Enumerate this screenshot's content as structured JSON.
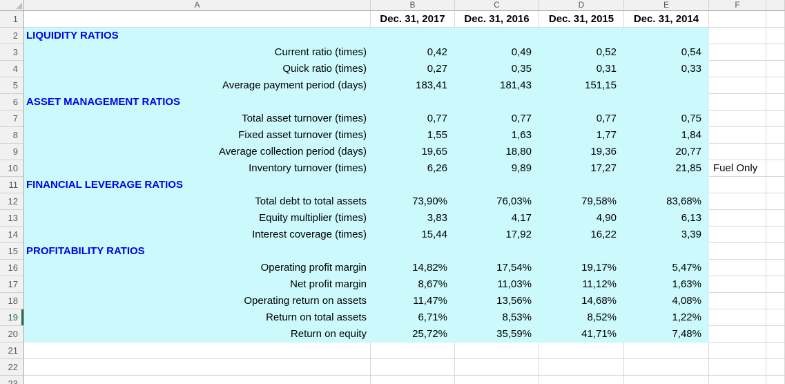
{
  "sheet": {
    "column_letters": [
      "A",
      "B",
      "C",
      "D",
      "E",
      "F",
      ""
    ],
    "row_numbers": [
      "1",
      "2",
      "3",
      "4",
      "5",
      "6",
      "7",
      "8",
      "9",
      "10",
      "11",
      "12",
      "13",
      "14",
      "15",
      "16",
      "17",
      "18",
      "19",
      "20",
      "21",
      "22",
      "23"
    ],
    "active_row_number": "19"
  },
  "header_row": {
    "dates": [
      "Dec. 31, 2017",
      "Dec. 31, 2016",
      "Dec. 31, 2015",
      "Dec. 31, 2014"
    ]
  },
  "rows": [
    {
      "row": "2",
      "label": "LIQUIDITY RATIOS",
      "section": true,
      "values": [
        "",
        "",
        "",
        ""
      ],
      "note": ""
    },
    {
      "row": "3",
      "label": "Current ratio (times)",
      "section": false,
      "values": [
        "0,42",
        "0,49",
        "0,52",
        "0,54"
      ],
      "note": ""
    },
    {
      "row": "4",
      "label": "Quick ratio (times)",
      "section": false,
      "values": [
        "0,27",
        "0,35",
        "0,31",
        "0,33"
      ],
      "note": ""
    },
    {
      "row": "5",
      "label": "Average payment period (days)",
      "section": false,
      "values": [
        "183,41",
        "181,43",
        "151,15",
        ""
      ],
      "note": ""
    },
    {
      "row": "6",
      "label": "ASSET MANAGEMENT RATIOS",
      "section": true,
      "values": [
        "",
        "",
        "",
        ""
      ],
      "note": ""
    },
    {
      "row": "7",
      "label": "Total asset turnover (times)",
      "section": false,
      "values": [
        "0,77",
        "0,77",
        "0,77",
        "0,75"
      ],
      "note": ""
    },
    {
      "row": "8",
      "label": "Fixed asset turnover (times)",
      "section": false,
      "values": [
        "1,55",
        "1,63",
        "1,77",
        "1,84"
      ],
      "note": ""
    },
    {
      "row": "9",
      "label": "Average collection period (days)",
      "section": false,
      "values": [
        "19,65",
        "18,80",
        "19,36",
        "20,77"
      ],
      "note": ""
    },
    {
      "row": "10",
      "label": "Inventory turnover (times)",
      "section": false,
      "values": [
        "6,26",
        "9,89",
        "17,27",
        "21,85"
      ],
      "note": "Fuel Only"
    },
    {
      "row": "11",
      "label": "FINANCIAL LEVERAGE RATIOS",
      "section": true,
      "values": [
        "",
        "",
        "",
        ""
      ],
      "note": ""
    },
    {
      "row": "12",
      "label": "Total debt to total assets",
      "section": false,
      "values": [
        "73,90%",
        "76,03%",
        "79,58%",
        "83,68%"
      ],
      "note": ""
    },
    {
      "row": "13",
      "label": "Equity multiplier (times)",
      "section": false,
      "values": [
        "3,83",
        "4,17",
        "4,90",
        "6,13"
      ],
      "note": ""
    },
    {
      "row": "14",
      "label": "Interest coverage (times)",
      "section": false,
      "values": [
        "15,44",
        "17,92",
        "16,22",
        "3,39"
      ],
      "note": ""
    },
    {
      "row": "15",
      "label": "PROFITABILITY RATIOS",
      "section": true,
      "values": [
        "",
        "",
        "",
        ""
      ],
      "note": ""
    },
    {
      "row": "16",
      "label": "Operating profit margin",
      "section": false,
      "values": [
        "14,82%",
        "17,54%",
        "19,17%",
        "5,47%"
      ],
      "note": ""
    },
    {
      "row": "17",
      "label": "Net profit margin",
      "section": false,
      "values": [
        "8,67%",
        "11,03%",
        "11,12%",
        "1,63%"
      ],
      "note": ""
    },
    {
      "row": "18",
      "label": "Operating return on assets",
      "section": false,
      "values": [
        "11,47%",
        "13,56%",
        "14,68%",
        "4,08%"
      ],
      "note": ""
    },
    {
      "row": "19",
      "label": "Return on total assets",
      "section": false,
      "values": [
        "6,71%",
        "8,53%",
        "8,52%",
        "1,22%"
      ],
      "note": ""
    },
    {
      "row": "20",
      "label": "Return on equity",
      "section": false,
      "values": [
        "25,72%",
        "35,59%",
        "41,71%",
        "7,48%"
      ],
      "note": ""
    }
  ],
  "colors": {
    "fill_cyan": "#CCF9FB",
    "section_text_blue": "#0000F0",
    "active_row_green": "#217346",
    "grid_line": "#D8D8D8"
  }
}
